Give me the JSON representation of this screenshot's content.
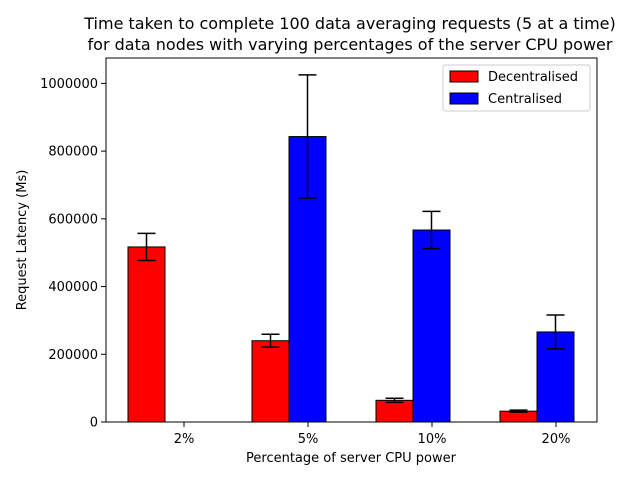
{
  "chart_data": {
    "type": "bar",
    "title_line1": "Time taken to complete 100 data averaging requests (5 at a time)",
    "title_line2": "for data nodes with varying percentages of the server CPU power",
    "xlabel": "Percentage of server CPU power",
    "ylabel": "Request Latency (Ms)",
    "categories": [
      "2%",
      "5%",
      "10%",
      "20%"
    ],
    "ylim": [
      0,
      1075000
    ],
    "yticks": [
      0,
      200000,
      400000,
      600000,
      800000,
      1000000
    ],
    "legend_position": "top-right",
    "series": [
      {
        "name": "Decentralised",
        "color": "#ff0000",
        "values": [
          517000,
          240000,
          64000,
          32000
        ],
        "errors": [
          40000,
          19000,
          6000,
          3000
        ]
      },
      {
        "name": "Centralised",
        "color": "#0000ff",
        "values": [
          null,
          843000,
          567000,
          266000
        ],
        "errors": [
          null,
          182000,
          55000,
          50000
        ]
      }
    ]
  }
}
